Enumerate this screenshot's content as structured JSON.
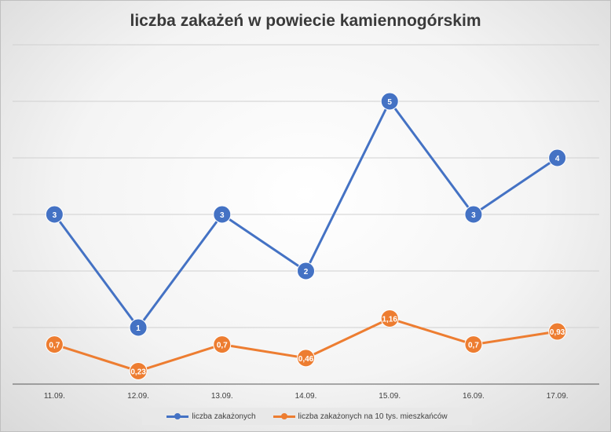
{
  "chart_data": {
    "type": "line",
    "title": "liczba zakażeń w powiecie kamiennogórskim",
    "categories": [
      "11.09.",
      "12.09.",
      "13.09.",
      "14.09.",
      "15.09.",
      "16.09.",
      "17.09."
    ],
    "series": [
      {
        "name": "liczba zakażonych",
        "values": [
          3,
          1,
          3,
          2,
          5,
          3,
          4
        ],
        "labels": [
          "3",
          "1",
          "3",
          "2",
          "5",
          "3",
          "4"
        ],
        "color": "#4472c4"
      },
      {
        "name": "liczba zakażonych na 10 tys. mieszkańców",
        "values": [
          0.7,
          0.23,
          0.7,
          0.46,
          1.16,
          0.7,
          0.93
        ],
        "labels": [
          "0,7",
          "0,23",
          "0,7",
          "0,46",
          "1,16",
          "0,7",
          "0,93"
        ],
        "color": "#ed7d31"
      }
    ],
    "ylim": [
      0,
      6
    ],
    "grid": true,
    "legend_position": "bottom"
  }
}
